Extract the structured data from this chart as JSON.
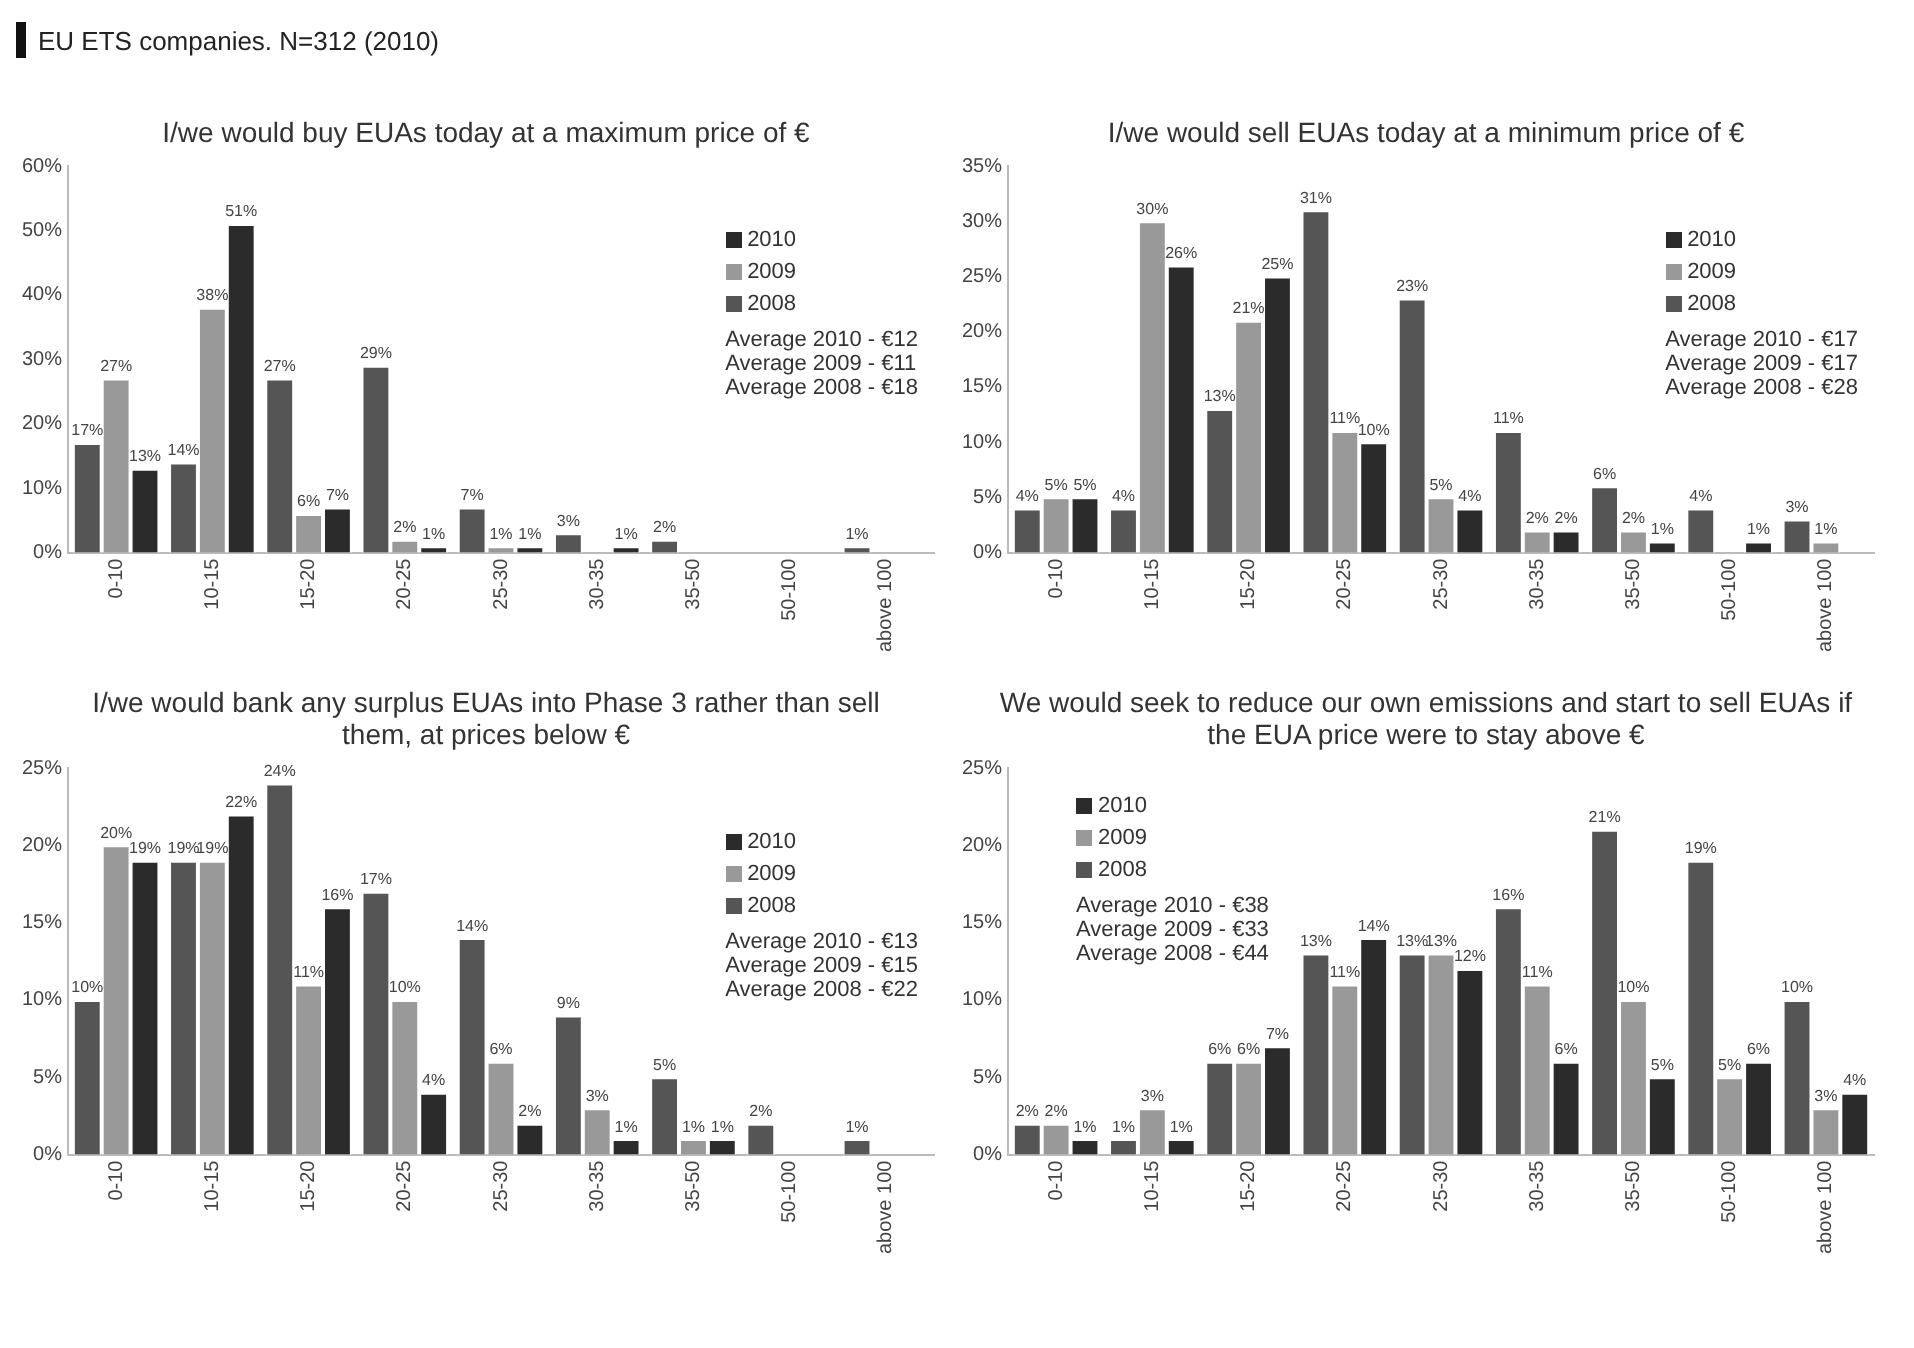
{
  "chart_data": [
    {
      "type": "other",
      "title": "EU ETS companies. N=312 (2010)"
    },
    {
      "type": "bar",
      "title": "I/we would buy EUAs today at a maximum price of €",
      "categories": [
        "0-10",
        "10-15",
        "15-20",
        "20-25",
        "25-30",
        "30-35",
        "35-50",
        "50-100",
        "above 100"
      ],
      "series": [
        {
          "name": "2008",
          "color": "#555555",
          "values": [
            17,
            14,
            27,
            29,
            7,
            3,
            2,
            null,
            1
          ],
          "value_labels": [
            "17%",
            "14%",
            "27%",
            "29%",
            "7%",
            "3%",
            "2%",
            null,
            "1%"
          ]
        },
        {
          "name": "2009",
          "color": "#999999",
          "values": [
            27,
            38,
            6,
            2,
            1,
            null,
            null,
            null,
            null
          ],
          "value_labels": [
            "27%",
            "38%",
            "6%",
            "2%",
            "1%",
            null,
            null,
            null,
            null
          ]
        },
        {
          "name": "2010",
          "color": "#2b2b2b",
          "values": [
            13,
            51,
            7,
            1,
            1,
            1,
            null,
            null,
            null
          ],
          "value_labels": [
            "13%",
            "51%",
            "7%",
            "1%",
            "1%",
            "1%",
            null,
            null,
            null
          ]
        }
      ],
      "ylim": [
        0,
        60
      ],
      "yticks": [
        {
          "value": 0,
          "label": "0%"
        },
        {
          "value": 10,
          "label": "10%"
        },
        {
          "value": 20,
          "label": "20%"
        },
        {
          "value": 30,
          "label": "30%"
        },
        {
          "value": 40,
          "label": "40%"
        },
        {
          "value": 50,
          "label": "50%"
        },
        {
          "value": 60,
          "label": "60%"
        }
      ],
      "legend": "top right",
      "annotations": [
        "Average 2010 - €12",
        "Average 2009 - €11",
        "Average 2008 - €18"
      ]
    },
    {
      "type": "bar",
      "title": "I/we would sell EUAs today at a minimum price of €",
      "categories": [
        "0-10",
        "10-15",
        "15-20",
        "20-25",
        "25-30",
        "30-35",
        "35-50",
        "50-100",
        "above 100"
      ],
      "series": [
        {
          "name": "2008",
          "color": "#555555",
          "values": [
            4,
            4,
            13,
            31,
            23,
            11,
            6,
            4,
            3
          ],
          "value_labels": [
            "4%",
            "4%",
            "13%",
            "31%",
            "23%",
            "11%",
            "6%",
            "4%",
            "3%"
          ]
        },
        {
          "name": "2009",
          "color": "#999999",
          "values": [
            5,
            30,
            21,
            11,
            5,
            2,
            2,
            null,
            1
          ],
          "value_labels": [
            "5%",
            "30%",
            "21%",
            "11%",
            "5%",
            "2%",
            "2%",
            null,
            "1%"
          ]
        },
        {
          "name": "2010",
          "color": "#2b2b2b",
          "values": [
            5,
            26,
            25,
            10,
            4,
            2,
            1,
            1,
            null
          ],
          "value_labels": [
            "5%",
            "26%",
            "25%",
            "10%",
            "4%",
            "2%",
            "1%",
            "1%",
            null
          ]
        }
      ],
      "ylim": [
        0,
        35
      ],
      "yticks": [
        {
          "value": 0,
          "label": "0%"
        },
        {
          "value": 5,
          "label": "5%"
        },
        {
          "value": 10,
          "label": "10%"
        },
        {
          "value": 15,
          "label": "15%"
        },
        {
          "value": 20,
          "label": "20%"
        },
        {
          "value": 25,
          "label": "25%"
        },
        {
          "value": 30,
          "label": "30%"
        },
        {
          "value": 35,
          "label": "35%"
        }
      ],
      "legend": "top right",
      "annotations": [
        "Average 2010 - €17",
        "Average 2009 - €17",
        "Average 2008 - €28"
      ]
    },
    {
      "type": "bar",
      "title": "I/we would bank any surplus EUAs into Phase 3 rather than sell them, at prices below €",
      "categories": [
        "0-10",
        "10-15",
        "15-20",
        "20-25",
        "25-30",
        "30-35",
        "35-50",
        "50-100",
        "above 100"
      ],
      "series": [
        {
          "name": "2008",
          "color": "#555555",
          "values": [
            10,
            19,
            24,
            17,
            14,
            9,
            5,
            2,
            1
          ],
          "value_labels": [
            "10%",
            "19%",
            "24%",
            "17%",
            "14%",
            "9%",
            "5%",
            "2%",
            "1%"
          ]
        },
        {
          "name": "2009",
          "color": "#999999",
          "values": [
            20,
            19,
            11,
            10,
            6,
            3,
            1,
            null,
            null
          ],
          "value_labels": [
            "20%",
            "19%",
            "11%",
            "10%",
            "6%",
            "3%",
            "1%",
            null,
            null
          ]
        },
        {
          "name": "2010",
          "color": "#2b2b2b",
          "values": [
            19,
            22,
            16,
            4,
            2,
            1,
            1,
            null,
            null
          ],
          "value_labels": [
            "19%",
            "22%",
            "16%",
            "4%",
            "2%",
            "1%",
            "1%",
            null,
            null
          ]
        }
      ],
      "ylim": [
        0,
        25
      ],
      "yticks": [
        {
          "value": 0,
          "label": "0%"
        },
        {
          "value": 5,
          "label": "5%"
        },
        {
          "value": 10,
          "label": "10%"
        },
        {
          "value": 15,
          "label": "15%"
        },
        {
          "value": 20,
          "label": "20%"
        },
        {
          "value": 25,
          "label": "25%"
        }
      ],
      "legend": "top right",
      "annotations": [
        "Average 2010 - €13",
        "Average 2009 - €15",
        "Average 2008 - €22"
      ]
    },
    {
      "type": "bar",
      "title": "We would seek to reduce our own emissions and start to sell EUAs if the EUA price were to stay above €",
      "categories": [
        "0-10",
        "10-15",
        "15-20",
        "20-25",
        "25-30",
        "30-35",
        "35-50",
        "50-100",
        "above 100"
      ],
      "series": [
        {
          "name": "2008",
          "color": "#555555",
          "values": [
            2,
            1,
            6,
            13,
            13,
            16,
            21,
            19,
            10
          ],
          "value_labels": [
            "2%",
            "1%",
            "6%",
            "13%",
            "13%",
            "16%",
            "21%",
            "19%",
            "10%"
          ]
        },
        {
          "name": "2009",
          "color": "#999999",
          "values": [
            2,
            3,
            6,
            11,
            13,
            11,
            10,
            5,
            3
          ],
          "value_labels": [
            "2%",
            "3%",
            "6%",
            "11%",
            "13%",
            "11%",
            "10%",
            "5%",
            "3%"
          ]
        },
        {
          "name": "2010",
          "color": "#2b2b2b",
          "values": [
            1,
            1,
            7,
            14,
            12,
            6,
            5,
            6,
            4
          ],
          "value_labels": [
            "1%",
            "1%",
            "7%",
            "14%",
            "12%",
            "6%",
            "5%",
            "6%",
            "4%"
          ]
        }
      ],
      "ylim": [
        0,
        25
      ],
      "yticks": [
        {
          "value": 0,
          "label": "0%"
        },
        {
          "value": 5,
          "label": "5%"
        },
        {
          "value": 10,
          "label": "10%"
        },
        {
          "value": 15,
          "label": "15%"
        },
        {
          "value": 20,
          "label": "20%"
        },
        {
          "value": 25,
          "label": "25%"
        }
      ],
      "legend": "top left",
      "annotations": [
        "Average 2010 - €38",
        "Average 2009 - €33",
        "Average 2008 - €44"
      ]
    }
  ]
}
